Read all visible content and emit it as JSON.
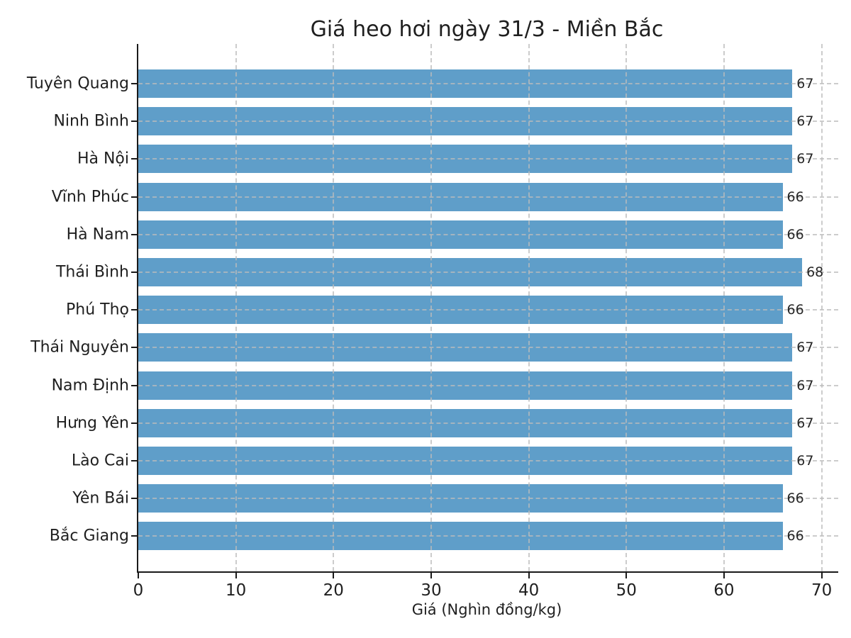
{
  "chart_data": {
    "type": "bar",
    "orientation": "horizontal",
    "title": "Giá heo hơi ngày 31/3 - Miền Bắc",
    "xlabel": "Giá (Nghìn đồng/kg)",
    "ylabel": "",
    "categories": [
      "Tuyên Quang",
      "Ninh Bình",
      "Hà Nội",
      "Vĩnh Phúc",
      "Hà Nam",
      "Thái Bình",
      "Phú Thọ",
      "Thái Nguyên",
      "Nam Định",
      "Hưng Yên",
      "Lào Cai",
      "Yên Bái",
      "Bắc Giang"
    ],
    "values": [
      67,
      67,
      67,
      66,
      66,
      68,
      66,
      67,
      67,
      67,
      67,
      66,
      66
    ],
    "xlim": [
      0,
      71.7
    ],
    "xticks": [
      0,
      10,
      20,
      30,
      40,
      50,
      60,
      70
    ],
    "bar_color": "#5F9EC9",
    "grid": "dashed, both axes, drawn above bars",
    "legend": "none",
    "value_labels": true
  }
}
